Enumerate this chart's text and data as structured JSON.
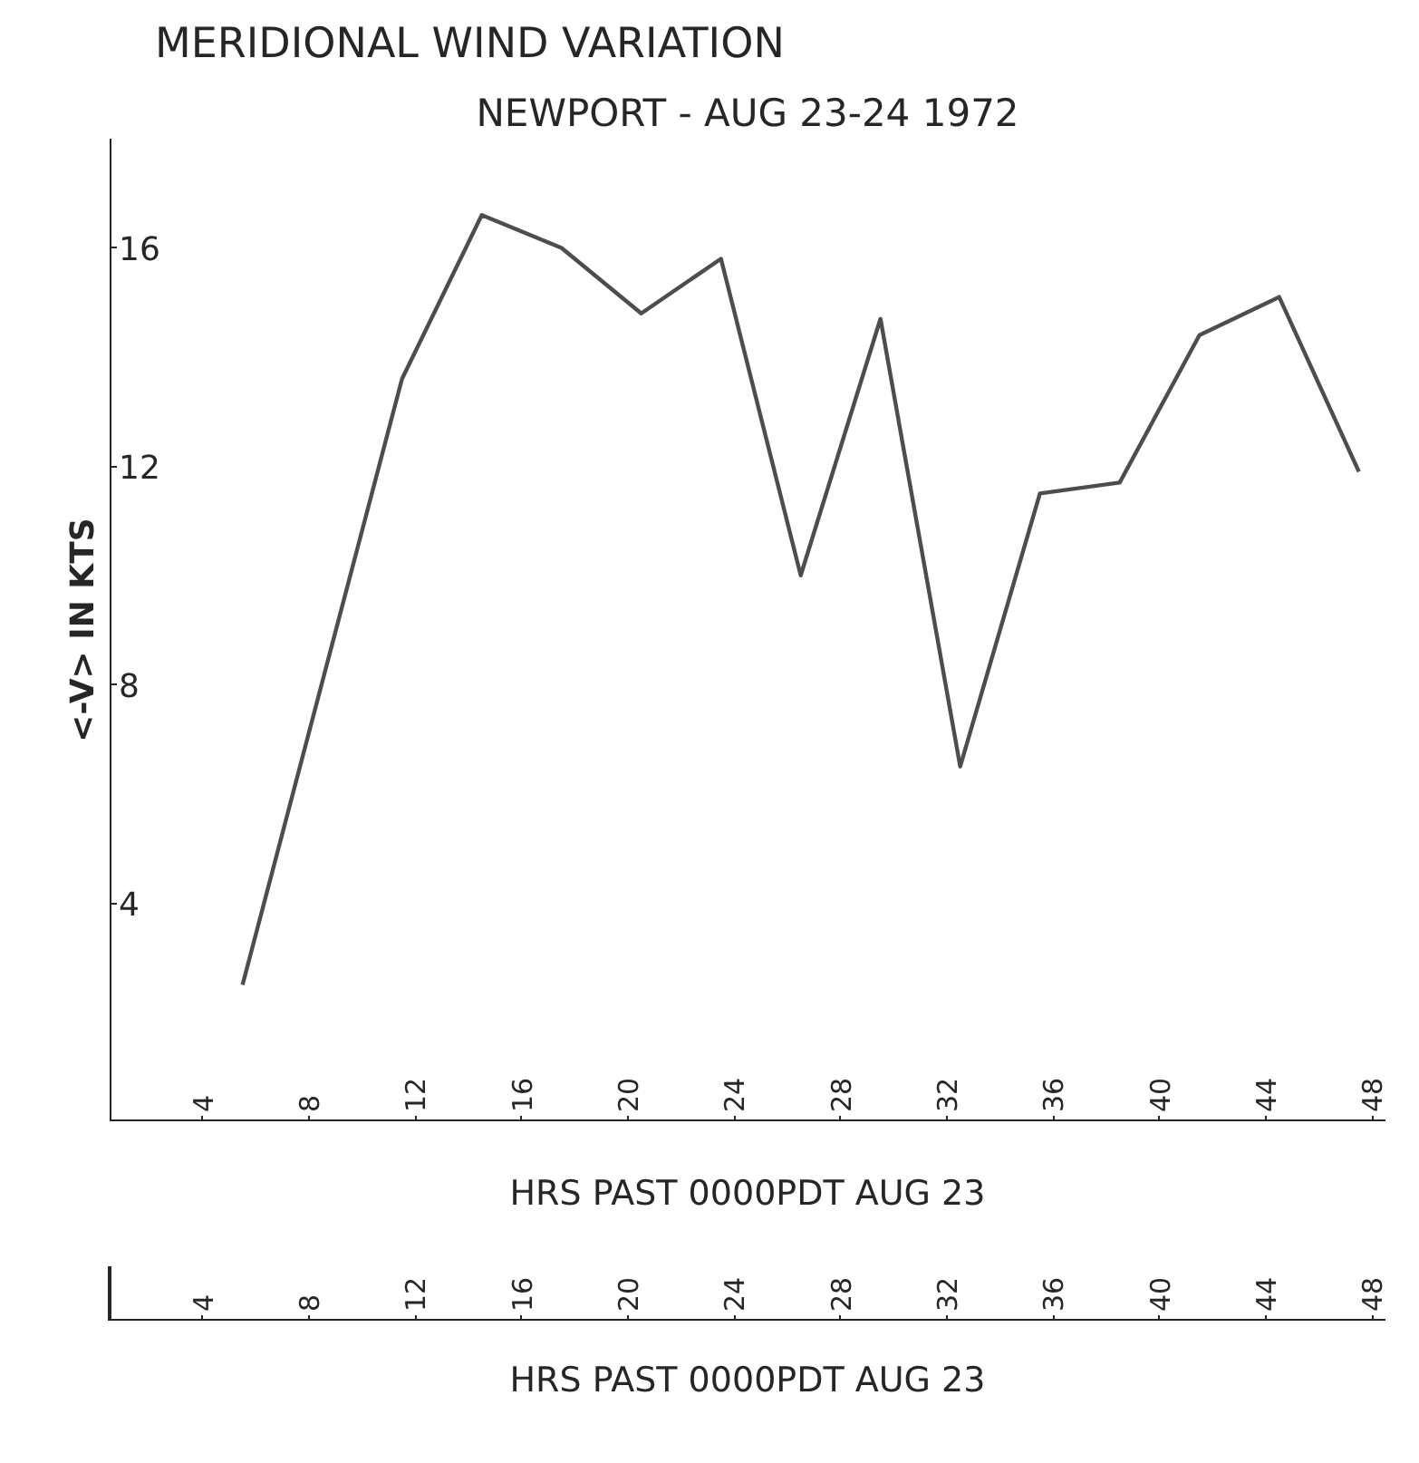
{
  "chart_data": {
    "type": "line",
    "title": "MERIDIONAL WIND VARIATION",
    "subtitle": "NEWPORT - AUG 23-24 1972",
    "xlabel": "HRS PAST 0000PDT AUG 23",
    "x2label": "HRS PAST 0000PDT AUG 23",
    "ylabel": "<-V> IN KTS",
    "x": [
      5.5,
      11.5,
      14.5,
      17.5,
      20.5,
      23.5,
      26.5,
      29.5,
      32.5,
      35.5,
      38.5,
      41.5,
      44.5,
      47.5
    ],
    "series": [
      {
        "color": "#4d4d4d",
        "values": [
          2.5,
          13.6,
          16.6,
          16.0,
          14.8,
          15.8,
          10.0,
          14.7,
          6.5,
          11.5,
          11.7,
          14.4,
          15.1,
          11.9
        ]
      }
    ],
    "xlim": [
      0.5,
      48.5
    ],
    "xticks": [
      4,
      8,
      12,
      16,
      20,
      24,
      28,
      32,
      36,
      40,
      44,
      48
    ],
    "x2lim": [
      0.5,
      48.5
    ],
    "x2ticks": [
      4,
      8,
      12,
      16,
      20,
      24,
      28,
      32,
      36,
      40,
      44,
      48
    ],
    "ylim": [
      0,
      18
    ],
    "yticks": [
      4,
      8,
      12,
      16
    ],
    "line_style": "solid"
  }
}
